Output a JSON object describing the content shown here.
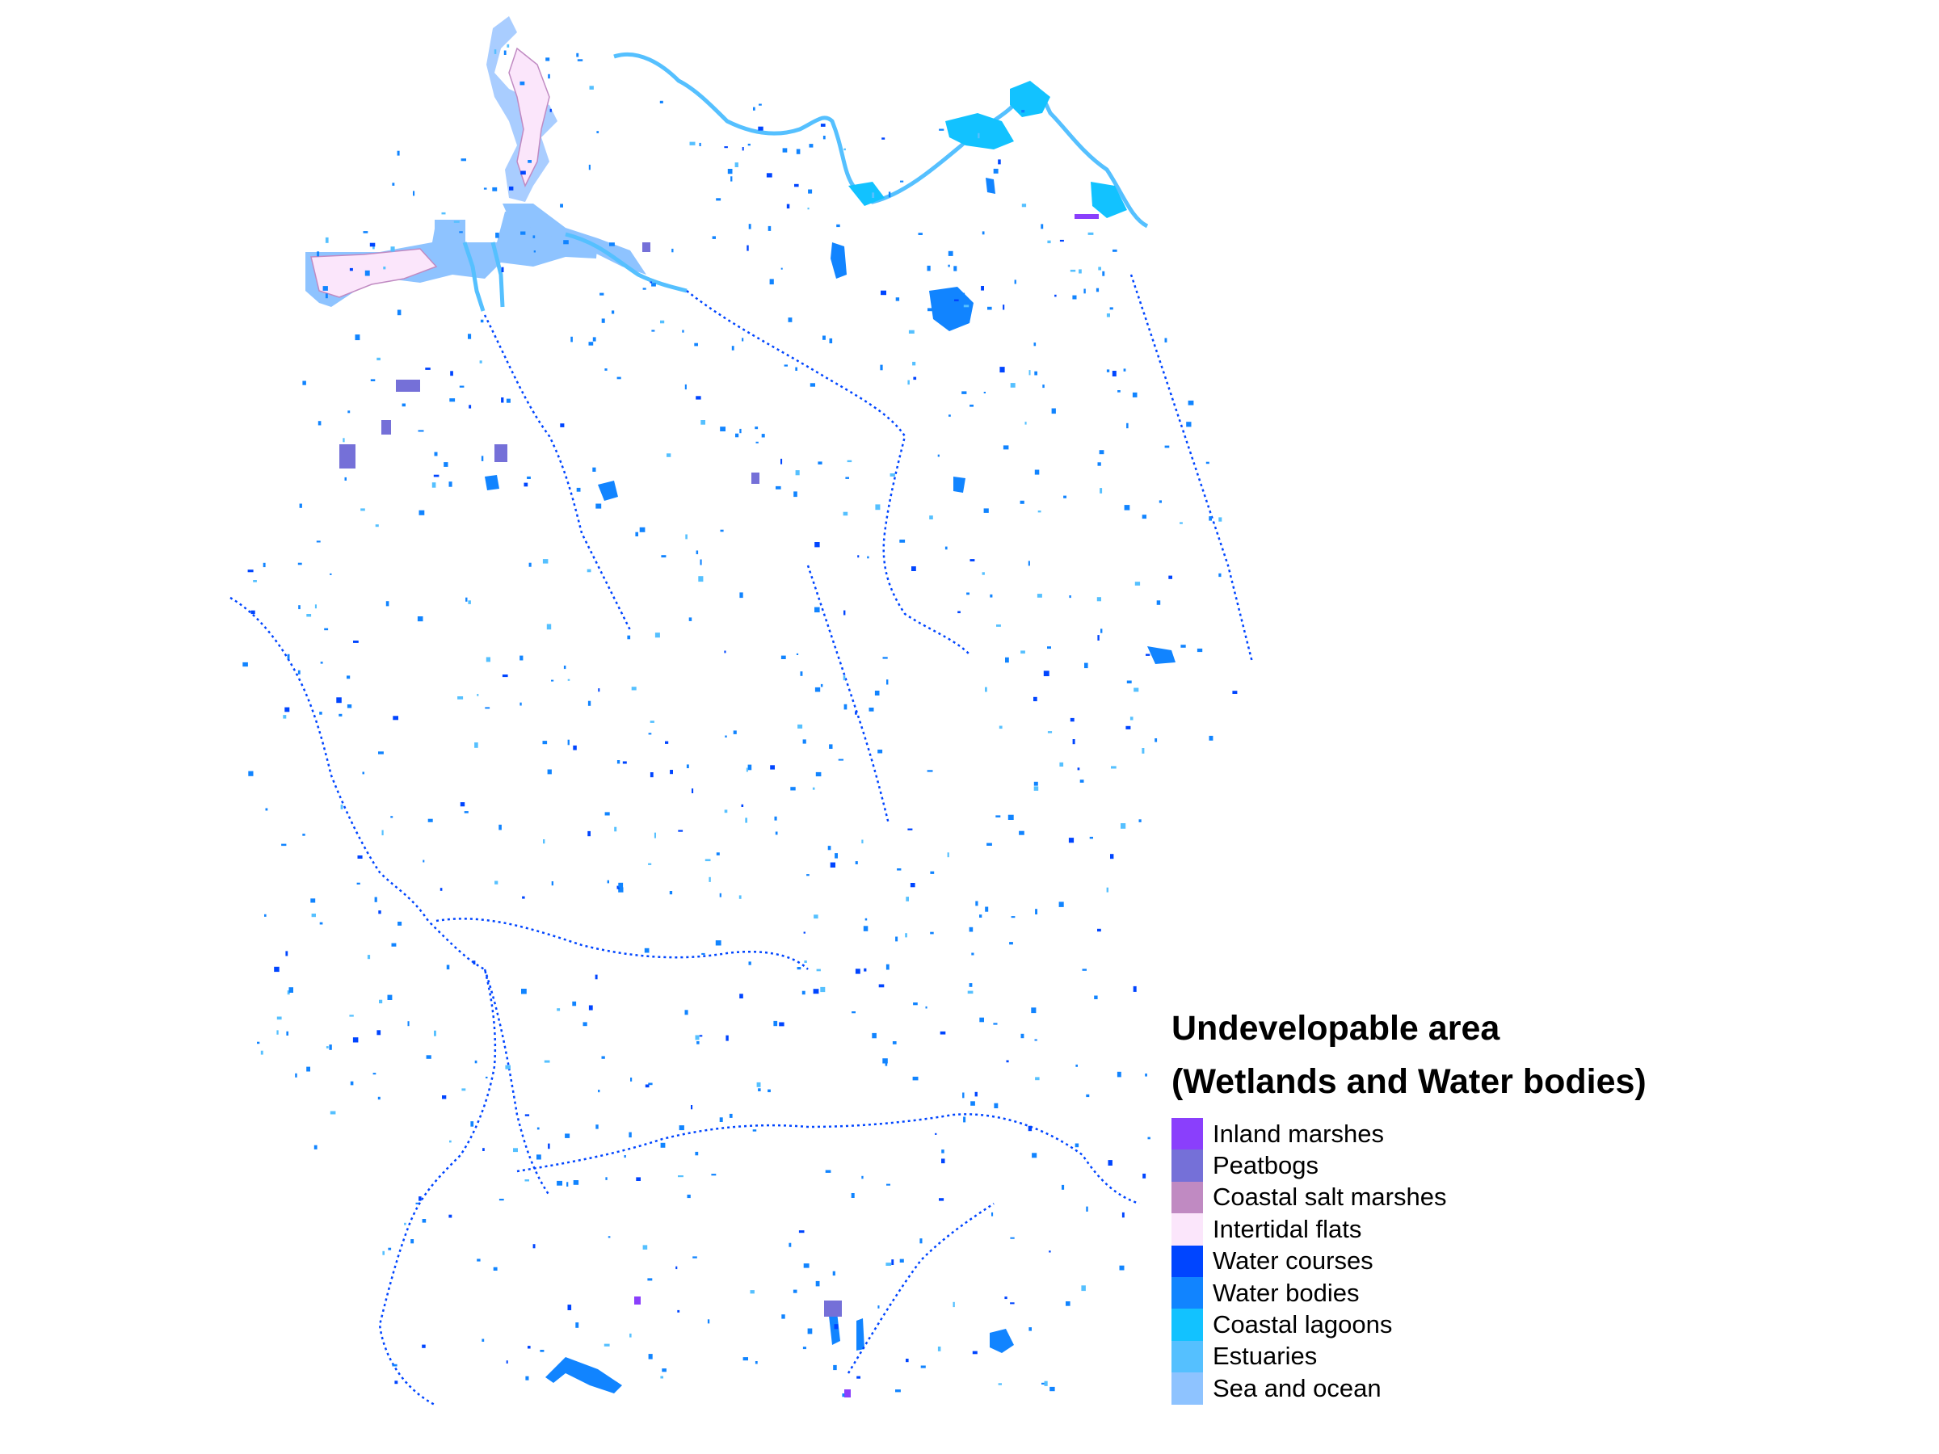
{
  "legend": {
    "title_line1": "Undevelopable area",
    "title_line2": "(Wetlands and Water bodies)",
    "items": [
      {
        "label": "Inland marshes",
        "color": "#8a3ffc"
      },
      {
        "label": "Peatbogs",
        "color": "#7570d8"
      },
      {
        "label": "Coastal salt marshes",
        "color": "#c08ac2"
      },
      {
        "label": "Intertidal flats",
        "color": "#fbe6fb"
      },
      {
        "label": "Water courses",
        "color": "#0045ff"
      },
      {
        "label": "Water bodies",
        "color": "#1184ff"
      },
      {
        "label": "Coastal lagoons",
        "color": "#12c2ff"
      },
      {
        "label": "Estuaries",
        "color": "#55c0ff"
      },
      {
        "label": "Sea and ocean",
        "color": "#8ec3ff"
      }
    ]
  }
}
